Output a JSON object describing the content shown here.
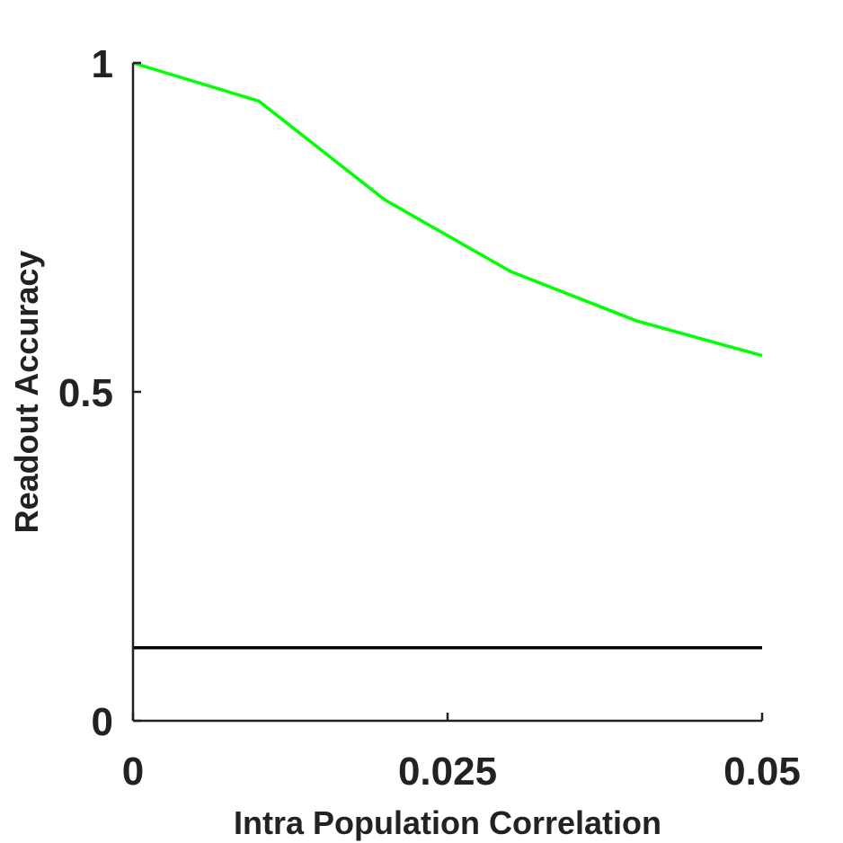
{
  "chart_data": {
    "type": "line",
    "title": "",
    "xlabel": "Intra Population Correlation",
    "ylabel": "Readout Accuracy",
    "xlim": [
      0,
      0.05
    ],
    "ylim": [
      0,
      1
    ],
    "xticks": [
      0,
      0.025,
      0.05
    ],
    "yticks": [
      0,
      0.5,
      1
    ],
    "xtick_labels": [
      "0",
      "0.025",
      "0.05"
    ],
    "ytick_labels": [
      "0",
      "0.5",
      "1"
    ],
    "grid": false,
    "series": [
      {
        "x": [
          0,
          0.01,
          0.02,
          0.03,
          0.04,
          0.05
        ],
        "y": [
          1.0,
          0.942,
          0.792,
          0.683,
          0.608,
          0.555
        ],
        "color": "#00ff00"
      }
    ],
    "reference_lines": [
      {
        "type": "horizontal",
        "y": 0.111,
        "color": "#000000"
      }
    ]
  }
}
